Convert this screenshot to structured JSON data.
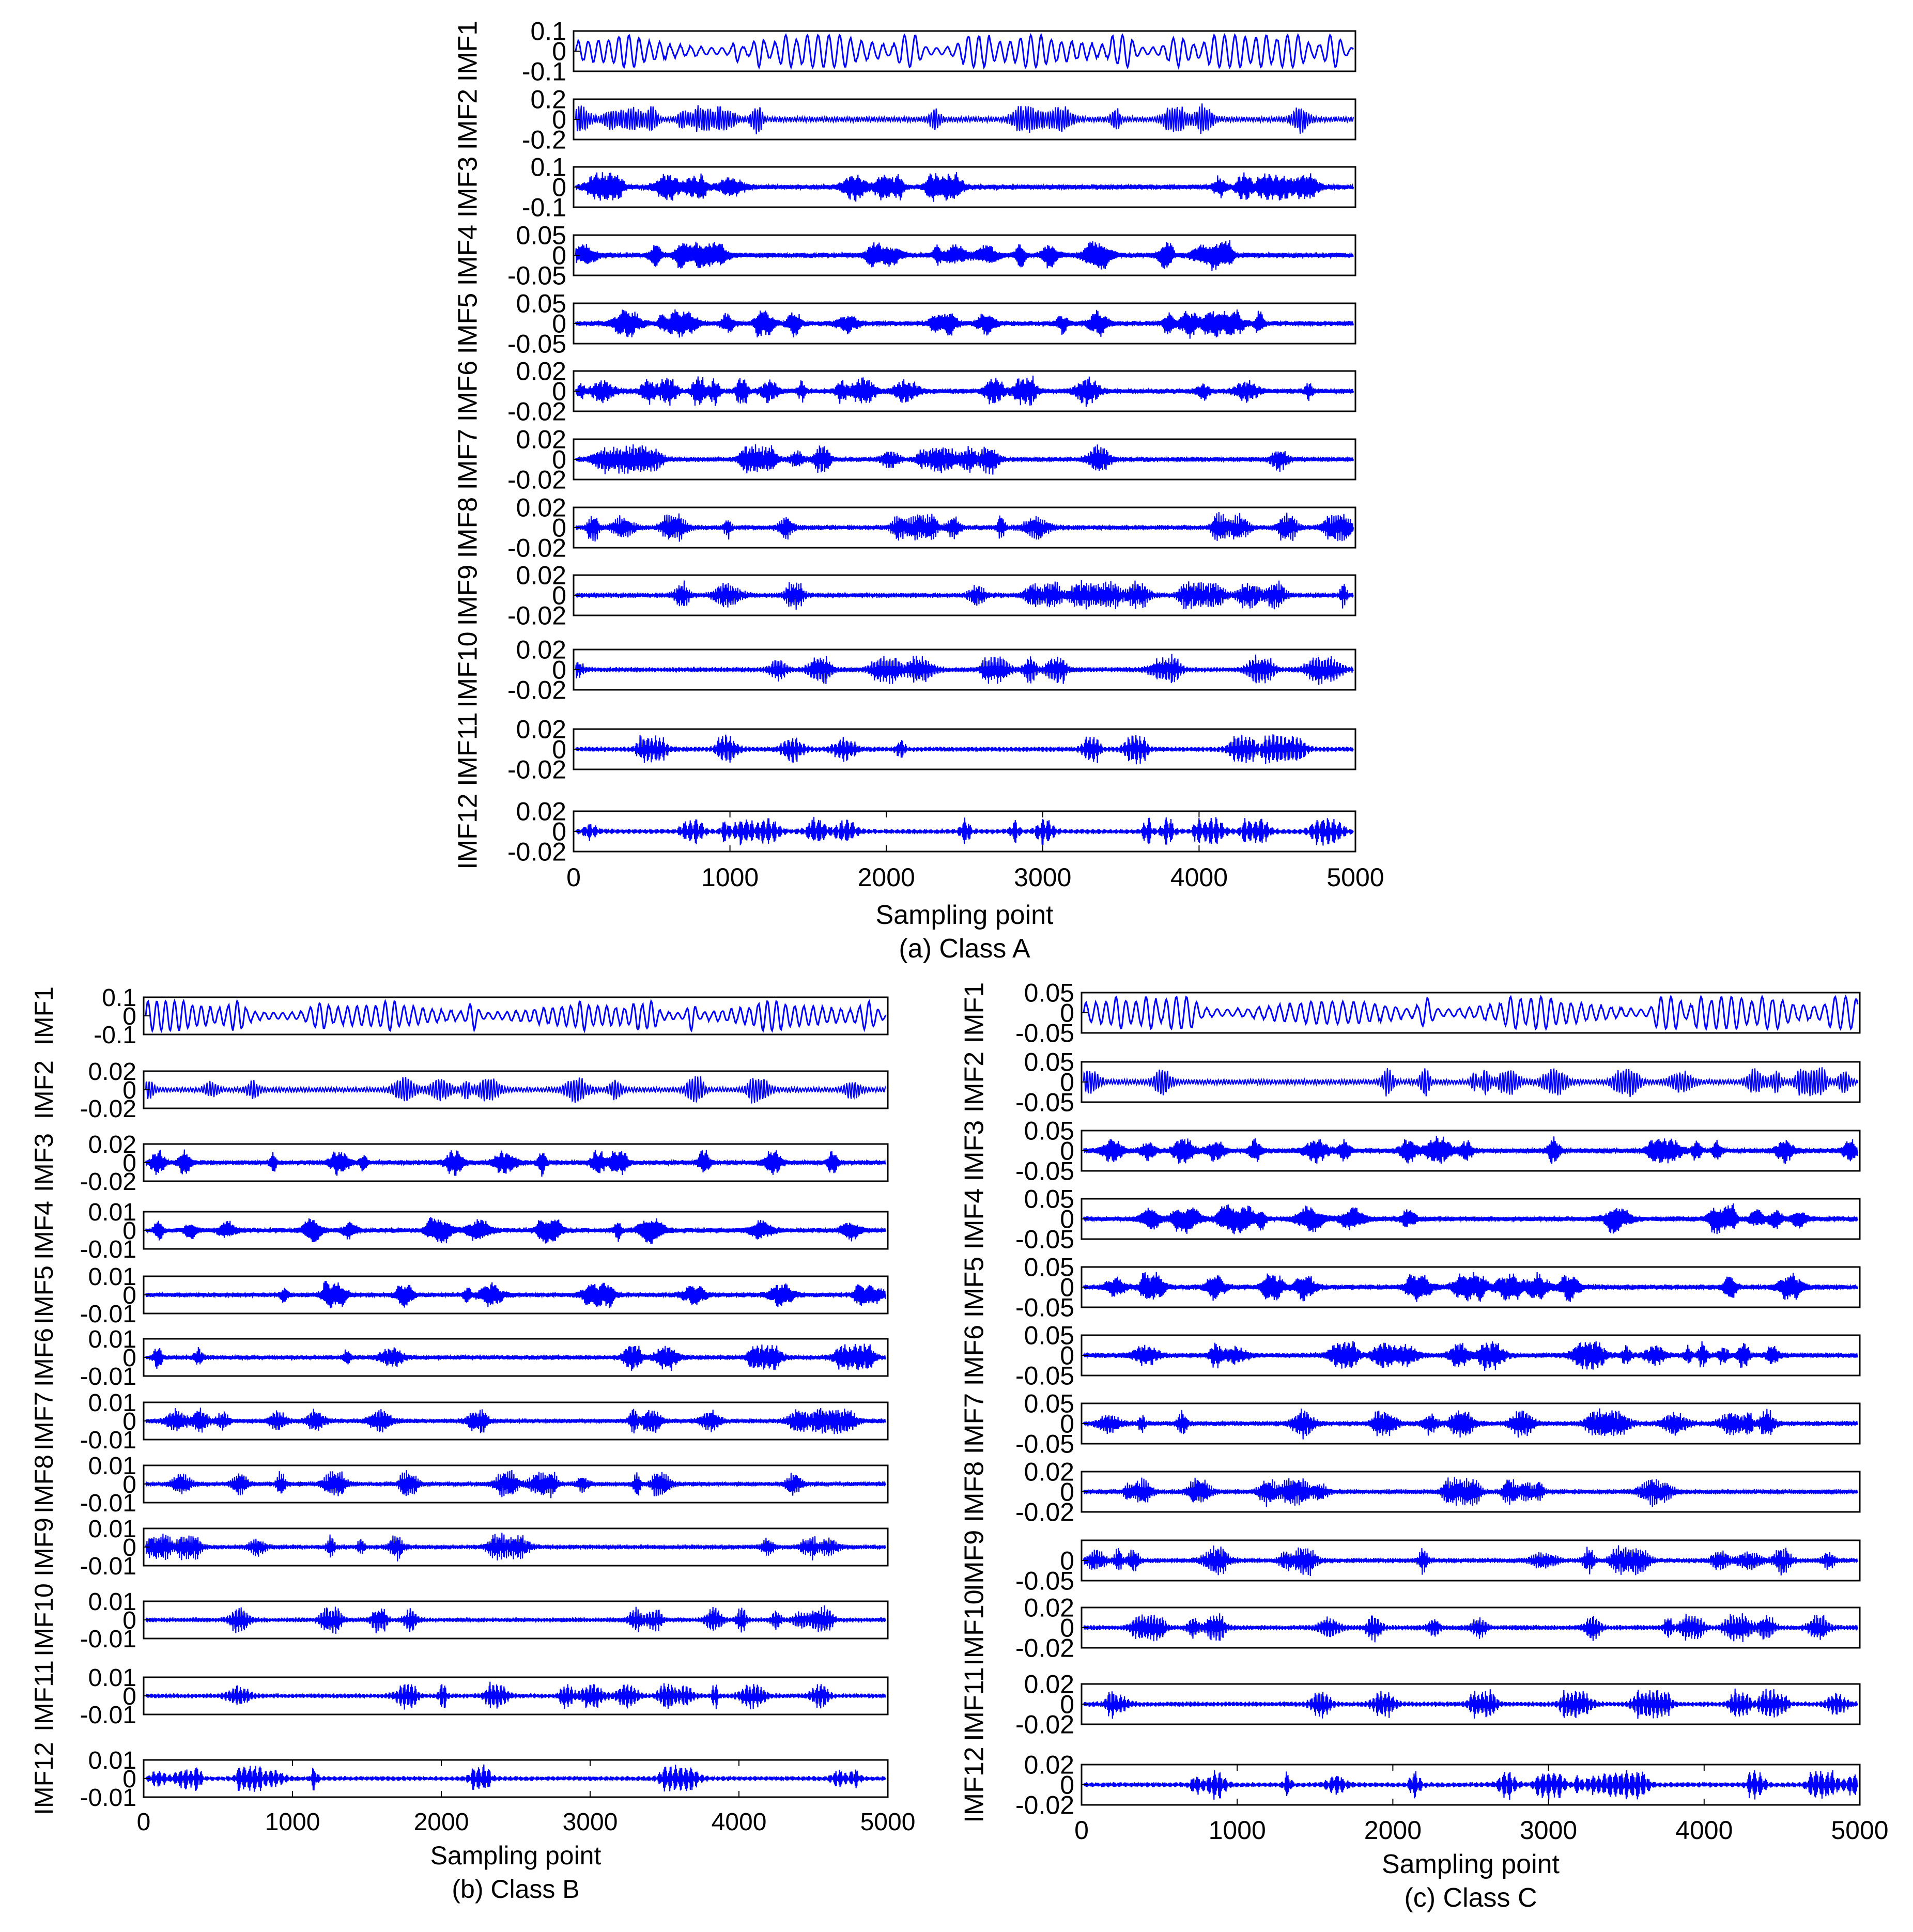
{
  "figure": {
    "line_color": "#0000ff",
    "frame_color": "#000000"
  },
  "chart_data": [
    {
      "type": "line",
      "id": "a",
      "caption": "(a) Class A",
      "xlabel": "Sampling point",
      "xlim": [
        0,
        5000
      ],
      "xticks": [
        "0",
        "1000",
        "2000",
        "3000",
        "4000",
        "5000"
      ],
      "series": [
        {
          "name": "IMF1",
          "ylim": [
            -0.1,
            0.1
          ],
          "ticks": [
            "0.1",
            "0",
            "-0.1"
          ]
        },
        {
          "name": "IMF2",
          "ylim": [
            -0.2,
            0.2
          ],
          "ticks": [
            "0.2",
            "0",
            "-0.2"
          ]
        },
        {
          "name": "IMF3",
          "ylim": [
            -0.1,
            0.1
          ],
          "ticks": [
            "0.1",
            "0",
            "-0.1"
          ]
        },
        {
          "name": "IMF4",
          "ylim": [
            -0.05,
            0.05
          ],
          "ticks": [
            "0.05",
            "0",
            "-0.05"
          ]
        },
        {
          "name": "IMF5",
          "ylim": [
            -0.05,
            0.05
          ],
          "ticks": [
            "0.05",
            "0",
            "-0.05"
          ]
        },
        {
          "name": "IMF6",
          "ylim": [
            -0.02,
            0.02
          ],
          "ticks": [
            "0.02",
            "0",
            "-0.02"
          ]
        },
        {
          "name": "IMF7",
          "ylim": [
            -0.02,
            0.02
          ],
          "ticks": [
            "0.02",
            "0",
            "-0.02"
          ]
        },
        {
          "name": "IMF8",
          "ylim": [
            -0.02,
            0.02
          ],
          "ticks": [
            "0.02",
            "0",
            "-0.02"
          ]
        },
        {
          "name": "IMF9",
          "ylim": [
            -0.02,
            0.02
          ],
          "ticks": [
            "0.02",
            "0",
            "-0.02"
          ]
        },
        {
          "name": "IMF10",
          "ylim": [
            -0.02,
            0.02
          ],
          "ticks": [
            "0.02",
            "0",
            "-0.02"
          ]
        },
        {
          "name": "IMF11",
          "ylim": [
            -0.02,
            0.02
          ],
          "ticks": [
            "0.02",
            "0",
            "-0.02"
          ]
        },
        {
          "name": "IMF12",
          "ylim": [
            -0.02,
            0.02
          ],
          "ticks": [
            "0.02",
            "0",
            "-0.02"
          ]
        }
      ]
    },
    {
      "type": "line",
      "id": "b",
      "caption": "(b) Class B",
      "xlabel": "Sampling point",
      "xlim": [
        0,
        5000
      ],
      "xticks": [
        "0",
        "1000",
        "2000",
        "3000",
        "4000",
        "5000"
      ],
      "series": [
        {
          "name": "IMF1",
          "ylim": [
            -0.1,
            0.1
          ],
          "ticks": [
            "0.1",
            "0",
            "-0.1"
          ]
        },
        {
          "name": "IMF2",
          "ylim": [
            -0.02,
            0.02
          ],
          "ticks": [
            "0.02",
            "0",
            "-0.02"
          ]
        },
        {
          "name": "IMF3",
          "ylim": [
            -0.02,
            0.02
          ],
          "ticks": [
            "0.02",
            "0",
            "-0.02"
          ]
        },
        {
          "name": "IMF4",
          "ylim": [
            -0.01,
            0.01
          ],
          "ticks": [
            "0.01",
            "0",
            "-0.01"
          ]
        },
        {
          "name": "IMF5",
          "ylim": [
            -0.01,
            0.01
          ],
          "ticks": [
            "0.01",
            "0",
            "-0.01"
          ]
        },
        {
          "name": "IMF6",
          "ylim": [
            -0.01,
            0.01
          ],
          "ticks": [
            "0.01",
            "0",
            "-0.01"
          ]
        },
        {
          "name": "IMF7",
          "ylim": [
            -0.01,
            0.01
          ],
          "ticks": [
            "0.01",
            "0",
            "-0.01"
          ]
        },
        {
          "name": "IMF8",
          "ylim": [
            -0.01,
            0.01
          ],
          "ticks": [
            "0.01",
            "0",
            "-0.01"
          ]
        },
        {
          "name": "IMF9",
          "ylim": [
            -0.01,
            0.01
          ],
          "ticks": [
            "0.01",
            "0",
            "-0.01"
          ]
        },
        {
          "name": "IMF10",
          "ylim": [
            -0.01,
            0.01
          ],
          "ticks": [
            "0.01",
            "0",
            "-0.01"
          ]
        },
        {
          "name": "IMF11",
          "ylim": [
            -0.01,
            0.01
          ],
          "ticks": [
            "0.01",
            "0",
            "-0.01"
          ]
        },
        {
          "name": "IMF12",
          "ylim": [
            -0.01,
            0.01
          ],
          "ticks": [
            "0.01",
            "0",
            "-0.01"
          ]
        }
      ]
    },
    {
      "type": "line",
      "id": "c",
      "caption": "(c) Class C",
      "xlabel": "Sampling point",
      "xlim": [
        0,
        5000
      ],
      "xticks": [
        "0",
        "1000",
        "2000",
        "3000",
        "4000",
        "5000"
      ],
      "series": [
        {
          "name": "IMF1",
          "ylim": [
            -0.05,
            0.05
          ],
          "ticks": [
            "0.05",
            "0",
            "-0.05"
          ]
        },
        {
          "name": "IMF2",
          "ylim": [
            -0.05,
            0.05
          ],
          "ticks": [
            "0.05",
            "0",
            "-0.05"
          ]
        },
        {
          "name": "IMF3",
          "ylim": [
            -0.05,
            0.05
          ],
          "ticks": [
            "0.05",
            "0",
            "-0.05"
          ]
        },
        {
          "name": "IMF4",
          "ylim": [
            -0.05,
            0.05
          ],
          "ticks": [
            "0.05",
            "0",
            "-0.05"
          ]
        },
        {
          "name": "IMF5",
          "ylim": [
            -0.05,
            0.05
          ],
          "ticks": [
            "0.05",
            "0",
            "-0.05"
          ]
        },
        {
          "name": "IMF6",
          "ylim": [
            -0.05,
            0.05
          ],
          "ticks": [
            "0.05",
            "0",
            "-0.05"
          ]
        },
        {
          "name": "IMF7",
          "ylim": [
            -0.05,
            0.05
          ],
          "ticks": [
            "0.05",
            "0",
            "-0.05"
          ]
        },
        {
          "name": "IMF8",
          "ylim": [
            -0.02,
            0.02
          ],
          "ticks": [
            "0.02",
            "0",
            "-0.02"
          ]
        },
        {
          "name": "IMF9",
          "ylim": [
            -0.05,
            0.05
          ],
          "ticks": [
            "0",
            "-0.05"
          ]
        },
        {
          "name": "IMF10",
          "ylim": [
            -0.02,
            0.02
          ],
          "ticks": [
            "0.02",
            "0",
            "-0.02"
          ]
        },
        {
          "name": "IMF11",
          "ylim": [
            -0.02,
            0.02
          ],
          "ticks": [
            "0.02",
            "0",
            "-0.02"
          ]
        },
        {
          "name": "IMF12",
          "ylim": [
            -0.02,
            0.02
          ],
          "ticks": [
            "0.02",
            "0",
            "-0.02"
          ]
        }
      ]
    }
  ]
}
